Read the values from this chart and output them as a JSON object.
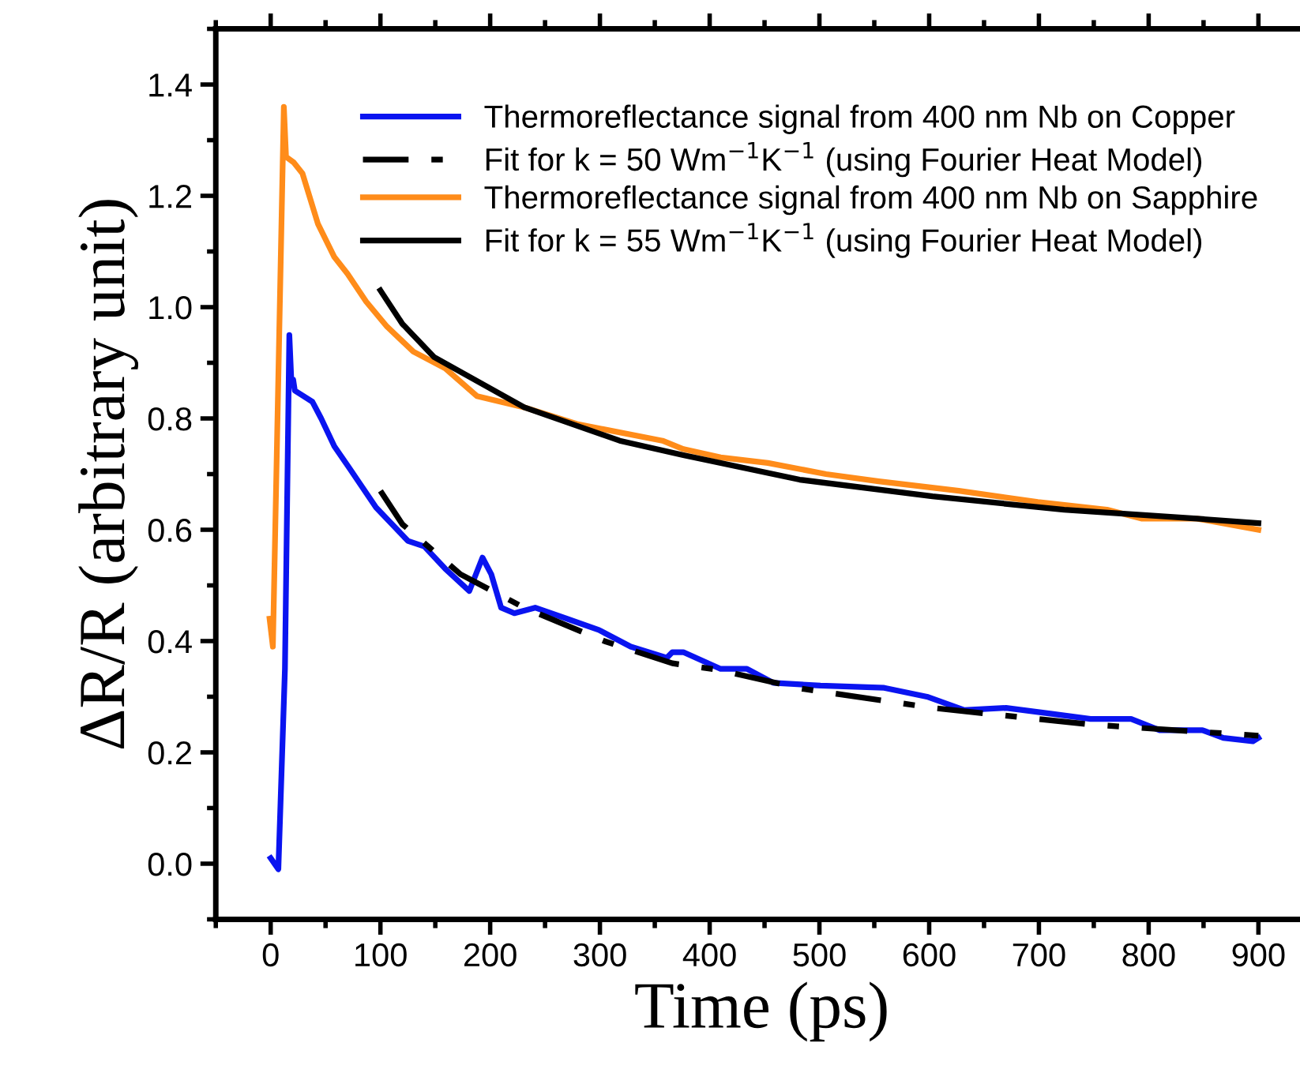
{
  "chart_data": {
    "type": "line",
    "xlabel": "Time (ps)",
    "ylabel": "ΔR/R (arbitrary unit)",
    "xlim": [
      -50,
      945
    ],
    "ylim": [
      -0.1,
      1.5
    ],
    "xticks": [
      0,
      100,
      200,
      300,
      400,
      500,
      600,
      700,
      800,
      900
    ],
    "yticks": [
      {
        "value": 0,
        "label": "0.0"
      },
      0.2,
      0.4,
      0.6,
      0.8,
      {
        "value": 1,
        "label": "1.0"
      },
      1.2,
      1.4
    ],
    "grid": false,
    "legend": "top right",
    "marker": "none",
    "series": [
      {
        "name": "Thermoreflectance signal from 400 nm Nb on Copper",
        "color": "#0a14f0",
        "line_style": "solid",
        "x": [
          0,
          7,
          13,
          17,
          19,
          20.5,
          22,
          38,
          46,
          58,
          72,
          96,
          125,
          140,
          159,
          181,
          193,
          201,
          210,
          222,
          241,
          270,
          299,
          328,
          361,
          366,
          376,
          410,
          434,
          458,
          501,
          559,
          598,
          632,
          670,
          709,
          747,
          784,
          810,
          849,
          868,
          895,
          900
        ],
        "values": [
          0.01,
          -0.01,
          0.35,
          0.95,
          0.86,
          0.87,
          0.85,
          0.83,
          0.8,
          0.75,
          0.71,
          0.64,
          0.58,
          0.57,
          0.53,
          0.49,
          0.55,
          0.52,
          0.46,
          0.45,
          0.46,
          0.44,
          0.42,
          0.39,
          0.37,
          0.38,
          0.38,
          0.35,
          0.35,
          0.325,
          0.32,
          0.316,
          0.3,
          0.276,
          0.28,
          0.27,
          0.26,
          0.26,
          0.24,
          0.24,
          0.226,
          0.22,
          0.226
        ]
      },
      {
        "name": "Fit for k = 50 Wm$^{−1}$K$^{−1}$ (using Fourier Heat Model)",
        "color": "#000000",
        "line_style": "dashdot",
        "x": [
          100,
          120,
          173,
          231,
          304,
          366,
          409,
          482,
          603,
          747,
          900
        ],
        "values": [
          0.67,
          0.61,
          0.52,
          0.46,
          0.4,
          0.36,
          0.348,
          0.315,
          0.28,
          0.25,
          0.23
        ]
      },
      {
        "name": "Thermoreflectance signal from 400 nm Nb on Sapphire",
        "color": "#ff8c1a",
        "line_style": "solid",
        "x": [
          -1,
          2,
          12,
          14,
          21,
          29,
          43,
          58,
          70,
          87,
          106,
          130,
          159,
          188,
          231,
          279,
          357,
          376,
          410,
          453,
          506,
          554,
          627,
          699,
          762,
          794,
          844,
          900
        ],
        "values": [
          0.44,
          0.39,
          1.36,
          1.27,
          1.26,
          1.24,
          1.15,
          1.09,
          1.06,
          1.01,
          0.965,
          0.92,
          0.89,
          0.84,
          0.82,
          0.79,
          0.76,
          0.745,
          0.73,
          0.72,
          0.7,
          0.687,
          0.67,
          0.65,
          0.636,
          0.62,
          0.62,
          0.6
        ]
      },
      {
        "name": "Fit for k = 55 Wm$^{−1}$K$^{−1}$ (using Fourier Heat Model)",
        "color": "#000000",
        "line_style": "solid",
        "x": [
          100,
          120,
          149,
          231,
          318,
          376,
          482,
          603,
          723,
          844,
          900
        ],
        "values": [
          1.03,
          0.97,
          0.91,
          0.82,
          0.76,
          0.734,
          0.69,
          0.66,
          0.636,
          0.62,
          0.612
        ]
      }
    ]
  }
}
